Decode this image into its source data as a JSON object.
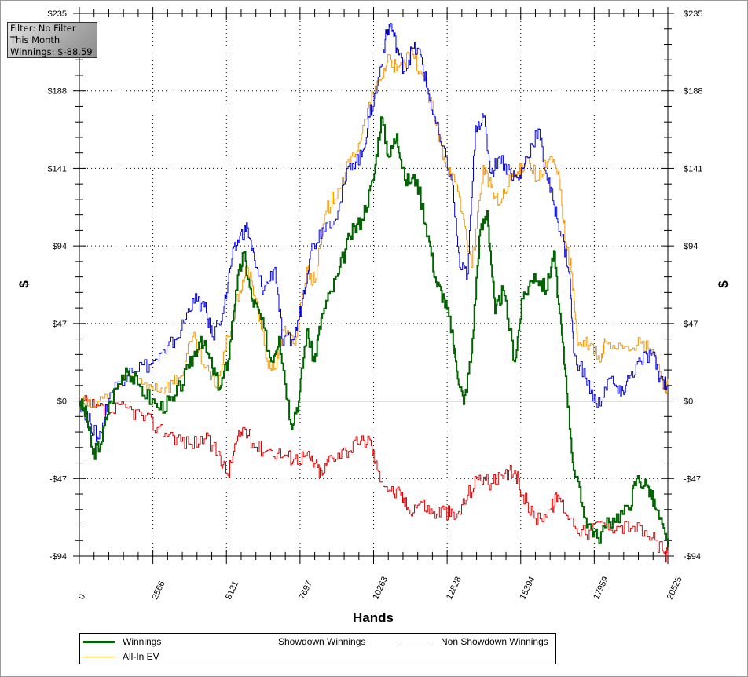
{
  "info_box": {
    "filter": "Filter: No Filter",
    "period": "This Month",
    "winnings": "Winnings: $-88.59"
  },
  "chart_data": {
    "type": "line",
    "xlabel": "Hands",
    "ylabel": "$",
    "ylabel_right": "$",
    "xlim": [
      0,
      20525
    ],
    "ylim": [
      -94,
      235
    ],
    "x_ticks": [
      0,
      2566,
      5131,
      7697,
      10263,
      12828,
      15394,
      17959,
      20525
    ],
    "y_ticks": [
      -94,
      -47,
      0,
      47,
      94,
      141,
      188,
      235
    ],
    "y_tick_labels": [
      "-$94",
      "-$47",
      "$0",
      "$47",
      "$94",
      "$141",
      "$188",
      "$235"
    ],
    "grid": true,
    "legend_position": "bottom",
    "series": [
      {
        "name": "Winnings",
        "color": "#006400",
        "width": 2,
        "points": [
          [
            0,
            0
          ],
          [
            247,
            -9
          ],
          [
            466,
            -32
          ],
          [
            740,
            -26
          ],
          [
            1069,
            0
          ],
          [
            1617,
            20
          ],
          [
            2028,
            10
          ],
          [
            2713,
            -4
          ],
          [
            3261,
            0
          ],
          [
            3809,
            20
          ],
          [
            4220,
            39
          ],
          [
            4631,
            20
          ],
          [
            4905,
            8
          ],
          [
            5179,
            24
          ],
          [
            5453,
            67
          ],
          [
            5727,
            90
          ],
          [
            6001,
            62
          ],
          [
            6275,
            53
          ],
          [
            6686,
            24
          ],
          [
            6960,
            39
          ],
          [
            7371,
            -14
          ],
          [
            7645,
            0
          ],
          [
            7919,
            43
          ],
          [
            8193,
            24
          ],
          [
            8467,
            53
          ],
          [
            9015,
            77
          ],
          [
            9426,
            100
          ],
          [
            9837,
            110
          ],
          [
            10248,
            134
          ],
          [
            10522,
            172
          ],
          [
            10796,
            148
          ],
          [
            11070,
            162
          ],
          [
            11344,
            134
          ],
          [
            11755,
            134
          ],
          [
            12166,
            100
          ],
          [
            12440,
            72
          ],
          [
            12714,
            62
          ],
          [
            12988,
            43
          ],
          [
            13125,
            24
          ],
          [
            13399,
            -2
          ],
          [
            13673,
            29
          ],
          [
            13947,
            100
          ],
          [
            14221,
            115
          ],
          [
            14495,
            53
          ],
          [
            14769,
            67
          ],
          [
            15180,
            24
          ],
          [
            15454,
            62
          ],
          [
            15865,
            77
          ],
          [
            16276,
            67
          ],
          [
            16550,
            91
          ],
          [
            16741,
            53
          ],
          [
            16961,
            15
          ],
          [
            17235,
            -42
          ],
          [
            17646,
            -71
          ],
          [
            18057,
            -83
          ],
          [
            18605,
            -71
          ],
          [
            19153,
            -66
          ],
          [
            19427,
            -47
          ],
          [
            19838,
            -52
          ],
          [
            20112,
            -66
          ],
          [
            20525,
            -88.59
          ]
        ]
      },
      {
        "name": "Showdown Winnings",
        "color": "#0000e0",
        "width": 1,
        "points": [
          [
            0,
            0
          ],
          [
            384,
            -14
          ],
          [
            658,
            -23
          ],
          [
            1069,
            5
          ],
          [
            1754,
            20
          ],
          [
            2439,
            22
          ],
          [
            2987,
            29
          ],
          [
            3535,
            43
          ],
          [
            3946,
            62
          ],
          [
            4357,
            57
          ],
          [
            4631,
            39
          ],
          [
            5042,
            57
          ],
          [
            5316,
            86
          ],
          [
            5590,
            100
          ],
          [
            5864,
            105
          ],
          [
            6138,
            81
          ],
          [
            6412,
            67
          ],
          [
            6823,
            81
          ],
          [
            7097,
            34
          ],
          [
            7508,
            39
          ],
          [
            7782,
            62
          ],
          [
            8056,
            91
          ],
          [
            8467,
            105
          ],
          [
            9015,
            115
          ],
          [
            9426,
            144
          ],
          [
            9837,
            148
          ],
          [
            10111,
            172
          ],
          [
            10385,
            191
          ],
          [
            10659,
            219
          ],
          [
            10850,
            229
          ],
          [
            11070,
            214
          ],
          [
            11344,
            200
          ],
          [
            11618,
            214
          ],
          [
            11892,
            210
          ],
          [
            12166,
            186
          ],
          [
            12577,
            157
          ],
          [
            12988,
            134
          ],
          [
            13262,
            81
          ],
          [
            13536,
            77
          ],
          [
            13810,
            167
          ],
          [
            14084,
            172
          ],
          [
            14358,
            138
          ],
          [
            14632,
            148
          ],
          [
            15043,
            138
          ],
          [
            15317,
            134
          ],
          [
            15591,
            148
          ],
          [
            16002,
            165
          ],
          [
            16276,
            138
          ],
          [
            16550,
            119
          ],
          [
            16824,
            100
          ],
          [
            17098,
            77
          ],
          [
            17235,
            29
          ],
          [
            17646,
            14
          ],
          [
            18057,
            -4
          ],
          [
            18468,
            14
          ],
          [
            18879,
            3
          ],
          [
            19153,
            14
          ],
          [
            19564,
            24
          ],
          [
            19975,
            29
          ],
          [
            20249,
            14
          ],
          [
            20525,
            10
          ]
        ]
      },
      {
        "name": "Non Showdown Winnings",
        "color": "#e00000",
        "width": 1,
        "points": [
          [
            0,
            0
          ],
          [
            521,
            -4
          ],
          [
            1069,
            -7
          ],
          [
            1617,
            -4
          ],
          [
            2165,
            -9
          ],
          [
            2713,
            -16
          ],
          [
            3261,
            -21
          ],
          [
            3809,
            -26
          ],
          [
            4357,
            -23
          ],
          [
            4905,
            -33
          ],
          [
            5179,
            -45
          ],
          [
            5453,
            -26
          ],
          [
            5727,
            -16
          ],
          [
            6138,
            -28
          ],
          [
            6686,
            -30
          ],
          [
            7234,
            -33
          ],
          [
            7508,
            -35
          ],
          [
            7919,
            -33
          ],
          [
            8193,
            -38
          ],
          [
            8467,
            -45
          ],
          [
            8741,
            -33
          ],
          [
            9289,
            -30
          ],
          [
            9700,
            -26
          ],
          [
            10111,
            -23
          ],
          [
            10385,
            -42
          ],
          [
            10796,
            -54
          ],
          [
            11207,
            -57
          ],
          [
            11481,
            -66
          ],
          [
            11892,
            -61
          ],
          [
            12303,
            -68
          ],
          [
            12714,
            -66
          ],
          [
            13125,
            -71
          ],
          [
            13536,
            -57
          ],
          [
            13947,
            -45
          ],
          [
            14358,
            -50
          ],
          [
            14769,
            -47
          ],
          [
            15180,
            -42
          ],
          [
            15454,
            -57
          ],
          [
            15865,
            -71
          ],
          [
            16413,
            -66
          ],
          [
            16687,
            -57
          ],
          [
            17098,
            -71
          ],
          [
            17646,
            -81
          ],
          [
            18194,
            -73
          ],
          [
            18742,
            -76
          ],
          [
            19290,
            -76
          ],
          [
            19975,
            -83
          ],
          [
            20386,
            -92
          ],
          [
            20525,
            -94
          ]
        ]
      },
      {
        "name": "All-In EV",
        "color": "#f0960a",
        "width": 1,
        "points": [
          [
            0,
            0
          ],
          [
            384,
            -4
          ],
          [
            1069,
            5
          ],
          [
            1754,
            15
          ],
          [
            2439,
            10
          ],
          [
            2987,
            8
          ],
          [
            3535,
            15
          ],
          [
            3946,
            39
          ],
          [
            4357,
            20
          ],
          [
            4768,
            8
          ],
          [
            5179,
            39
          ],
          [
            5590,
            67
          ],
          [
            5864,
            81
          ],
          [
            6138,
            62
          ],
          [
            6549,
            24
          ],
          [
            6823,
            20
          ],
          [
            7097,
            43
          ],
          [
            7508,
            34
          ],
          [
            7919,
            81
          ],
          [
            8193,
            72
          ],
          [
            8604,
            115
          ],
          [
            9015,
            129
          ],
          [
            9426,
            144
          ],
          [
            9837,
            162
          ],
          [
            10248,
            186
          ],
          [
            10522,
            195
          ],
          [
            10796,
            210
          ],
          [
            11070,
            200
          ],
          [
            11344,
            205
          ],
          [
            11618,
            210
          ],
          [
            12029,
            195
          ],
          [
            12440,
            167
          ],
          [
            12714,
            148
          ],
          [
            12988,
            138
          ],
          [
            13399,
            110
          ],
          [
            13673,
            81
          ],
          [
            14084,
            143
          ],
          [
            14358,
            129
          ],
          [
            14632,
            119
          ],
          [
            15043,
            134
          ],
          [
            15317,
            138
          ],
          [
            15591,
            148
          ],
          [
            16002,
            134
          ],
          [
            16413,
            148
          ],
          [
            16741,
            134
          ],
          [
            16961,
            96
          ],
          [
            17180,
            77
          ],
          [
            17372,
            34
          ],
          [
            17783,
            34
          ],
          [
            18194,
            24
          ],
          [
            18331,
            36
          ],
          [
            18879,
            34
          ],
          [
            19427,
            34
          ],
          [
            19975,
            31
          ],
          [
            20386,
            8
          ],
          [
            20525,
            10
          ]
        ]
      }
    ]
  }
}
